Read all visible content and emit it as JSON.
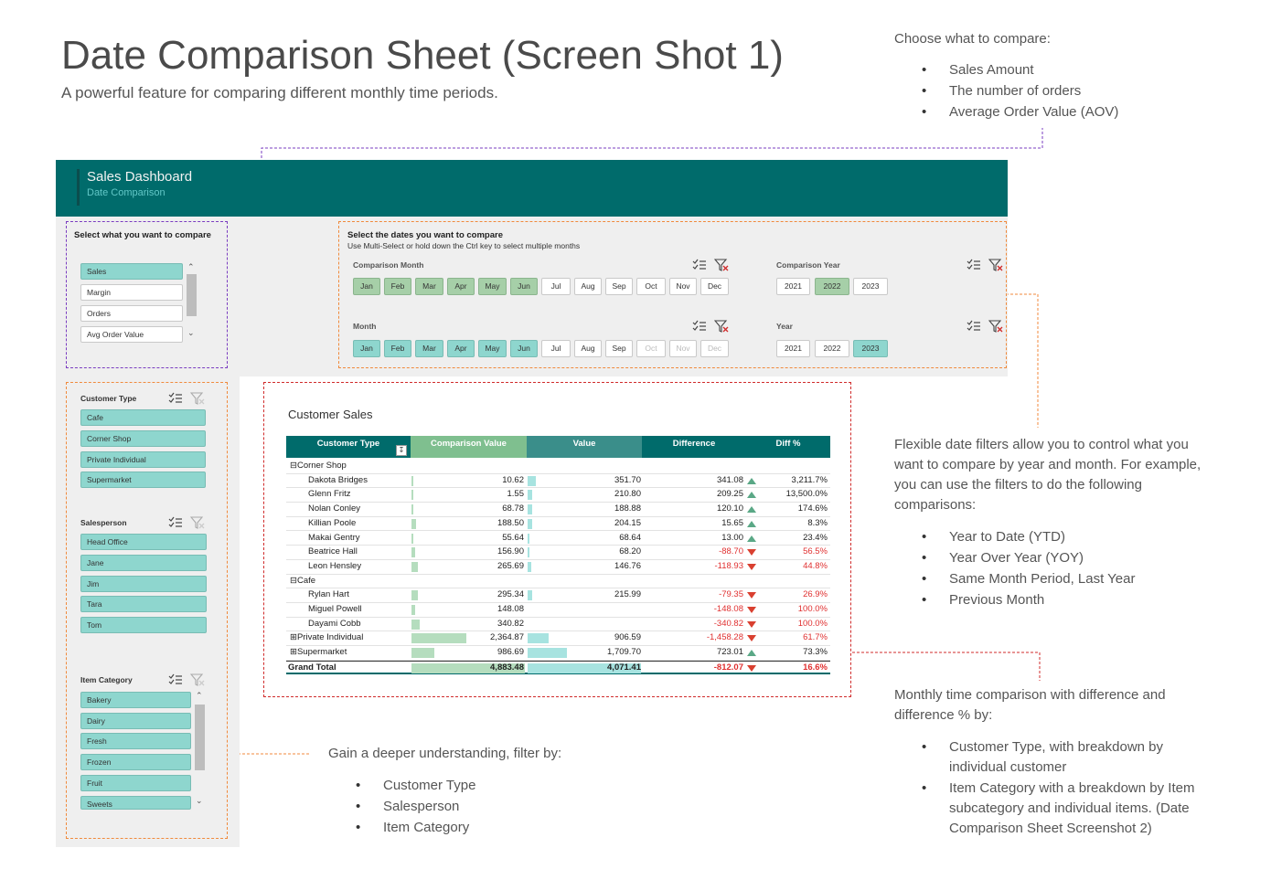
{
  "header": {
    "title": "Date Comparison Sheet (Screen Shot 1)",
    "subtitle": "A powerful feature for comparing different monthly time periods."
  },
  "notes": {
    "compare": {
      "intro": "Choose what to compare:",
      "items": [
        "Sales Amount",
        "The number of orders",
        "Average Order Value (AOV)"
      ]
    },
    "date_filters": {
      "intro": "Flexible date filters allow you to control what you want to compare by year and month. For example, you can use the filters to do the following comparisons:",
      "items": [
        "Year to Date (YTD)",
        "Year Over Year (YOY)",
        "Same Month Period, Last Year",
        "Previous Month"
      ]
    },
    "monthly": {
      "intro": "Monthly time comparison with difference and difference % by:",
      "items": [
        "Customer Type, with breakdown by individual customer",
        "Item Category with a breakdown by Item subcategory and individual items. (Date Comparison Sheet Screenshot 2)"
      ]
    },
    "filter_by": {
      "intro": "Gain a deeper understanding, filter by:",
      "items": [
        "Customer Type",
        "Salesperson",
        "Item Category"
      ]
    }
  },
  "dashboard": {
    "title": "Sales Dashboard",
    "subtitle": "Date Comparison",
    "compare_panel": {
      "title": "Select what you want to compare",
      "options": [
        "Sales",
        "Margin",
        "Orders",
        "Avg Order Value"
      ],
      "selected": "Sales"
    },
    "dates_panel": {
      "title": "Select the dates you want to compare",
      "hint": "Use Multi-Select or hold down the Ctrl key to select multiple months",
      "comparison_month_label": "Comparison Month",
      "comparison_year_label": "Comparison Year",
      "month_label": "Month",
      "year_label": "Year",
      "months": [
        "Jan",
        "Feb",
        "Mar",
        "Apr",
        "May",
        "Jun",
        "Jul",
        "Aug",
        "Sep",
        "Oct",
        "Nov",
        "Dec"
      ],
      "years": [
        "2021",
        "2022",
        "2023"
      ]
    },
    "customer_type": {
      "label": "Customer Type",
      "items": [
        "Cafe",
        "Corner Shop",
        "Private Individual",
        "Supermarket"
      ]
    },
    "salesperson": {
      "label": "Salesperson",
      "items": [
        "Head Office",
        "Jane",
        "Jim",
        "Tara",
        "Tom"
      ]
    },
    "item_category": {
      "label": "Item Category",
      "items": [
        "Bakery",
        "Dairy",
        "Fresh",
        "Frozen",
        "Fruit",
        "Sweets"
      ]
    }
  },
  "table": {
    "title": "Customer Sales",
    "columns": [
      "Customer Type",
      "Comparison Value",
      "Value",
      "Difference",
      "Diff %"
    ],
    "rows": [
      {
        "name": "Corner Shop",
        "group": true,
        "cv": "",
        "v": "",
        "d": "",
        "p": ""
      },
      {
        "name": "Dakota Bridges",
        "cv": "10.62",
        "v": "351.70",
        "d": "341.08",
        "p": "3,211.7%",
        "up": true
      },
      {
        "name": "Glenn Fritz",
        "cv": "1.55",
        "v": "210.80",
        "d": "209.25",
        "p": "13,500.0%",
        "up": true
      },
      {
        "name": "Nolan Conley",
        "cv": "68.78",
        "v": "188.88",
        "d": "120.10",
        "p": "174.6%",
        "up": true
      },
      {
        "name": "Killian Poole",
        "cv": "188.50",
        "v": "204.15",
        "d": "15.65",
        "p": "8.3%",
        "up": true
      },
      {
        "name": "Makai Gentry",
        "cv": "55.64",
        "v": "68.64",
        "d": "13.00",
        "p": "23.4%",
        "up": true
      },
      {
        "name": "Beatrice Hall",
        "cv": "156.90",
        "v": "68.20",
        "d": "-88.70",
        "p": "56.5%",
        "up": false
      },
      {
        "name": "Leon Hensley",
        "cv": "265.69",
        "v": "146.76",
        "d": "-118.93",
        "p": "44.8%",
        "up": false
      },
      {
        "name": "Cafe",
        "group": true,
        "cv": "",
        "v": "",
        "d": "",
        "p": ""
      },
      {
        "name": "Rylan Hart",
        "cv": "295.34",
        "v": "215.99",
        "d": "-79.35",
        "p": "26.9%",
        "up": false
      },
      {
        "name": "Miguel Powell",
        "cv": "148.08",
        "v": "",
        "d": "-148.08",
        "p": "100.0%",
        "up": false
      },
      {
        "name": "Dayami Cobb",
        "cv": "340.82",
        "v": "",
        "d": "-340.82",
        "p": "100.0%",
        "up": false
      },
      {
        "name": "Private Individual",
        "collapsed": true,
        "cv": "2,364.87",
        "v": "906.59",
        "d": "-1,458.28",
        "p": "61.7%",
        "up": false
      },
      {
        "name": "Supermarket",
        "collapsed": true,
        "cv": "986.69",
        "v": "1,709.70",
        "d": "723.01",
        "p": "73.3%",
        "up": true
      }
    ],
    "total": {
      "name": "Grand Total",
      "cv": "4,883.48",
      "v": "4,071.41",
      "d": "-812.07",
      "p": "16.6%"
    }
  },
  "chart_data": {
    "type": "table",
    "title": "Customer Sales",
    "columns": [
      "Customer Type",
      "Comparison Value",
      "Value",
      "Difference",
      "Diff %"
    ],
    "rows": [
      [
        "Dakota Bridges",
        10.62,
        351.7,
        341.08,
        "3,211.7%"
      ],
      [
        "Glenn Fritz",
        1.55,
        210.8,
        209.25,
        "13,500.0%"
      ],
      [
        "Nolan Conley",
        68.78,
        188.88,
        120.1,
        "174.6%"
      ],
      [
        "Killian Poole",
        188.5,
        204.15,
        15.65,
        "8.3%"
      ],
      [
        "Makai Gentry",
        55.64,
        68.64,
        13.0,
        "23.4%"
      ],
      [
        "Beatrice Hall",
        156.9,
        68.2,
        -88.7,
        "56.5%"
      ],
      [
        "Leon Hensley",
        265.69,
        146.76,
        -118.93,
        "44.8%"
      ],
      [
        "Rylan Hart",
        295.34,
        215.99,
        -79.35,
        "26.9%"
      ],
      [
        "Miguel Powell",
        148.08,
        null,
        -148.08,
        "100.0%"
      ],
      [
        "Dayami Cobb",
        340.82,
        null,
        -340.82,
        "100.0%"
      ],
      [
        "Private Individual",
        2364.87,
        906.59,
        -1458.28,
        "61.7%"
      ],
      [
        "Supermarket",
        986.69,
        1709.7,
        723.01,
        "73.3%"
      ],
      [
        "Grand Total",
        4883.48,
        4071.41,
        -812.07,
        "16.6%"
      ]
    ]
  },
  "colors": {
    "header_bg": "#006b6b",
    "selected_teal": "#8ed6ce",
    "selected_green": "#a6cfa8",
    "negative": "#e03030",
    "up_arrow": "#5aa886",
    "down_arrow": "#d94030"
  }
}
